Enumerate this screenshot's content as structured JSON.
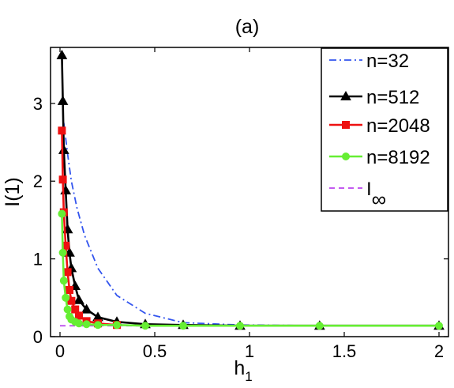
{
  "chart_data": {
    "type": "line",
    "title": "(a)",
    "xlabel": "h",
    "xlabel_sub": "1",
    "ylabel": "I(1)",
    "xlim": [
      -0.05,
      2.05
    ],
    "ylim": [
      0,
      3.72
    ],
    "xticks": [
      0,
      0.5,
      1,
      1.5,
      2
    ],
    "xtick_labels": [
      "0",
      "0.5",
      "1",
      "1.5",
      "2"
    ],
    "yticks": [
      0,
      1,
      2,
      3
    ],
    "ytick_labels": [
      "0",
      "1",
      "2",
      "3"
    ],
    "grid": false,
    "legend_position": "top-right",
    "series": [
      {
        "name": "n=32",
        "color": "#3355ee",
        "dash": "dashdot",
        "marker": "none",
        "x": [
          0.02,
          0.04,
          0.06,
          0.09,
          0.13,
          0.2,
          0.3,
          0.45,
          0.65,
          0.95,
          1.37,
          2.0
        ],
        "y": [
          2.75,
          2.35,
          2.0,
          1.65,
          1.3,
          0.88,
          0.53,
          0.3,
          0.18,
          0.15,
          0.14,
          0.14
        ]
      },
      {
        "name": "n=512",
        "color": "#000000",
        "dash": "solid",
        "marker": "triangle",
        "x": [
          0.01,
          0.015,
          0.02,
          0.03,
          0.04,
          0.05,
          0.06,
          0.08,
          0.1,
          0.14,
          0.2,
          0.3,
          0.45,
          0.65,
          0.95,
          1.37,
          2.0
        ],
        "y": [
          3.62,
          3.03,
          2.4,
          1.88,
          1.38,
          1.08,
          0.88,
          0.65,
          0.47,
          0.35,
          0.25,
          0.19,
          0.16,
          0.15,
          0.14,
          0.14,
          0.14
        ]
      },
      {
        "name": "n=2048",
        "color": "#ee1111",
        "dash": "solid",
        "marker": "square",
        "x": [
          0.01,
          0.015,
          0.02,
          0.03,
          0.04,
          0.05,
          0.06,
          0.08,
          0.1,
          0.14,
          0.2,
          0.3
        ],
        "y": [
          2.65,
          2.02,
          1.6,
          1.17,
          0.83,
          0.6,
          0.46,
          0.35,
          0.27,
          0.2,
          0.17,
          0.15
        ]
      },
      {
        "name": "n=8192",
        "color": "#66ee33",
        "dash": "solid",
        "marker": "circle",
        "x": [
          0.01,
          0.015,
          0.02,
          0.03,
          0.04,
          0.05,
          0.06,
          0.08,
          0.1,
          0.14,
          0.2,
          0.3,
          0.45,
          0.65,
          0.95,
          1.37,
          2.0
        ],
        "y": [
          1.58,
          1.08,
          0.72,
          0.5,
          0.35,
          0.26,
          0.22,
          0.19,
          0.17,
          0.16,
          0.15,
          0.15,
          0.14,
          0.14,
          0.14,
          0.14,
          0.14
        ]
      },
      {
        "name": "I",
        "name_sub": "∞",
        "color": "#bb44ee",
        "dash": "dashed",
        "marker": "none",
        "x": [
          0,
          2.0
        ],
        "y": [
          0.14,
          0.14
        ]
      }
    ]
  }
}
